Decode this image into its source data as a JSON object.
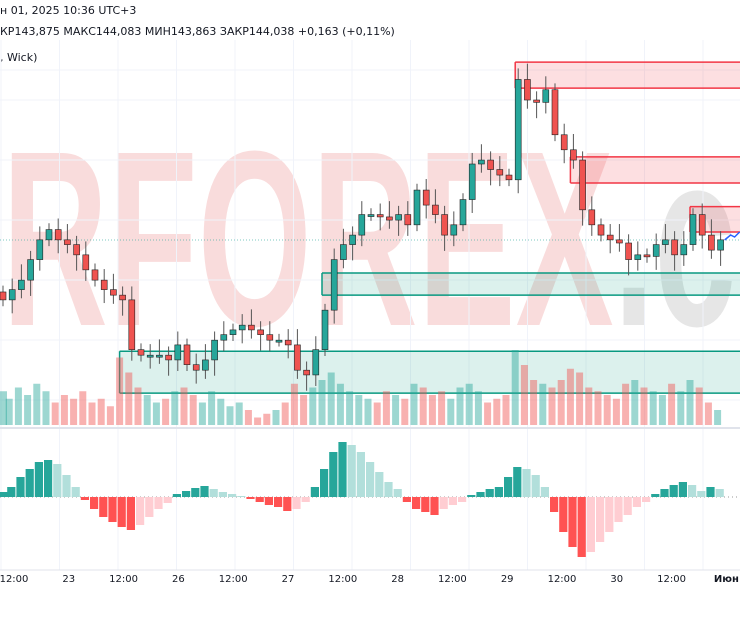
{
  "header": {
    "datetime": "н 01, 2025 10:36 UTC+3",
    "ohlc": "КР143,875  МАКС144,083  МИН143,863  ЗАКР144,038  +0,163 (+0,11%)",
    "indicator": ", Wick)"
  },
  "watermark": {
    "text_main": "RFOREX",
    "text_suffix": ".c"
  },
  "colors": {
    "up": "#26a69a",
    "down": "#ef5350",
    "up_light": "#b2dfdb",
    "down_light": "#ffcdd2",
    "zone_supply": "#f23645",
    "zone_demand": "#089981",
    "forecast": "#2962ff"
  },
  "time_axis": [
    "12:00",
    "23",
    "12:00",
    "26",
    "12:00",
    "27",
    "12:00",
    "28",
    "12:00",
    "29",
    "12:00",
    "30",
    "12:00",
    "Июн"
  ],
  "chart_data": {
    "type": "candlestick",
    "closes": [
      143.28,
      143.41,
      143.53,
      143.79,
      144.04,
      144.17,
      144.04,
      143.98,
      143.85,
      143.66,
      143.53,
      143.41,
      143.34,
      143.28,
      142.65,
      142.58,
      142.58,
      142.58,
      142.52,
      142.71,
      142.46,
      142.39,
      142.52,
      142.77,
      142.84,
      142.9,
      142.96,
      142.9,
      142.84,
      142.77,
      142.77,
      142.71,
      142.39,
      142.33,
      142.65,
      143.15,
      143.79,
      143.98,
      144.1,
      144.36,
      144.36,
      144.33,
      144.29,
      144.36,
      144.23,
      144.67,
      144.48,
      144.36,
      144.1,
      144.23,
      144.55,
      145.0,
      145.05,
      144.93,
      144.86,
      144.8,
      146.07,
      145.81,
      145.78,
      145.94,
      145.37,
      145.18,
      145.05,
      144.42,
      144.23,
      144.1,
      144.04,
      144.0,
      143.79,
      143.85,
      143.83,
      143.98,
      144.04,
      143.85,
      143.98,
      144.36,
      144.1,
      143.91,
      144.04
    ],
    "last_price": 144.038,
    "volume": [
      0.45,
      0.35,
      0.5,
      0.4,
      0.55,
      0.45,
      0.3,
      0.4,
      0.35,
      0.45,
      0.3,
      0.35,
      0.25,
      0.9,
      0.7,
      0.5,
      0.4,
      0.3,
      0.35,
      0.45,
      0.5,
      0.4,
      0.3,
      0.45,
      0.35,
      0.25,
      0.3,
      0.2,
      0.1,
      0.15,
      0.2,
      0.3,
      0.55,
      0.4,
      0.5,
      0.6,
      0.7,
      0.55,
      0.45,
      0.4,
      0.35,
      0.3,
      0.45,
      0.4,
      0.35,
      0.55,
      0.5,
      0.4,
      0.45,
      0.35,
      0.5,
      0.55,
      0.45,
      0.3,
      0.35,
      0.4,
      1.0,
      0.8,
      0.6,
      0.55,
      0.5,
      0.6,
      0.75,
      0.7,
      0.5,
      0.45,
      0.4,
      0.35,
      0.55,
      0.6,
      0.5,
      0.45,
      0.4,
      0.55,
      0.45,
      0.6,
      0.5,
      0.3,
      0.2
    ],
    "oscillator": [
      5,
      10,
      20,
      28,
      35,
      37,
      33,
      22,
      10,
      -3,
      -12,
      -20,
      -25,
      -30,
      -33,
      -28,
      -20,
      -12,
      -6,
      3,
      6,
      9,
      11,
      8,
      5,
      3,
      1,
      -2,
      -5,
      -8,
      -10,
      -14,
      -12,
      -5,
      10,
      28,
      45,
      55,
      52,
      45,
      35,
      25,
      15,
      8,
      -5,
      -12,
      -15,
      -18,
      -12,
      -8,
      -5,
      2,
      5,
      8,
      10,
      20,
      30,
      28,
      22,
      10,
      -15,
      -35,
      -50,
      -60,
      -55,
      -45,
      -35,
      -25,
      -18,
      -10,
      -5,
      3,
      8,
      12,
      15,
      12,
      6,
      10,
      8
    ],
    "zones": [
      {
        "kind": "supply",
        "start_candle": 56,
        "top": 146.29,
        "bottom": 145.96
      },
      {
        "kind": "supply",
        "start_candle": 62,
        "top": 145.09,
        "bottom": 144.76
      },
      {
        "kind": "supply",
        "start_candle": 75,
        "top": 144.46,
        "bottom": 144.14
      },
      {
        "kind": "demand",
        "start_candle": 35,
        "top": 143.62,
        "bottom": 143.34
      },
      {
        "kind": "demand",
        "start_candle": 13,
        "top": 142.63,
        "bottom": 142.1
      }
    ]
  }
}
